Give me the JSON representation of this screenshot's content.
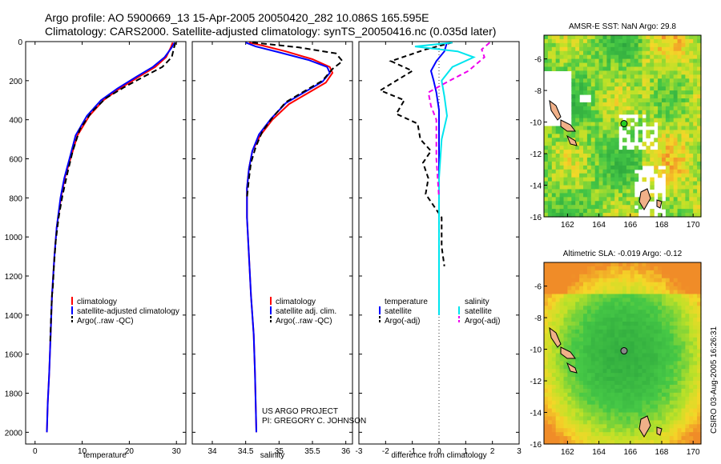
{
  "title_line1": "Argo profile: AO 5900669_13 15-Apr-2005 20050420_282 10.086S 165.595E",
  "title_line2": "Climatology: CARS2000. Satellite-adjusted climatology: synTS_20050416.nc (0.035d later)",
  "colors": {
    "clim": "#ff0000",
    "sat": "#0000ff",
    "argo": "#000000",
    "sal_sat": "#00e5ee",
    "sal_argo": "#ee00ee"
  },
  "credit_line1": "US ARGO PROJECT",
  "credit_line2": "PI: GREGORY C. JOHNSON",
  "timestamp": "CSIRO 03-Aug-2005 16:26:31",
  "chart_data": [
    {
      "type": "line",
      "name": "temperature",
      "xlabel": "temperature",
      "ylabel": "",
      "xlim": [
        -2,
        32
      ],
      "ylim": [
        2060,
        0
      ],
      "xticks": [
        0,
        10,
        20,
        30
      ],
      "yticks": [
        0,
        200,
        400,
        600,
        800,
        1000,
        1200,
        1400,
        1600,
        1800,
        2000
      ],
      "legend": [
        "climatology",
        "satellite-adjusted climatology",
        "Argo(..raw -QC)"
      ],
      "legend_position": "lower-right",
      "series": [
        {
          "name": "climatology",
          "color": "#ff0000",
          "dash": "none",
          "points": [
            [
              29.2,
              5
            ],
            [
              28.8,
              30
            ],
            [
              27.8,
              80
            ],
            [
              25.5,
              130
            ],
            [
              22,
              180
            ],
            [
              18,
              240
            ],
            [
              14.5,
              300
            ],
            [
              11.5,
              380
            ],
            [
              9,
              480
            ],
            [
              7.5,
              600
            ],
            [
              6.3,
              700
            ],
            [
              5.5,
              800
            ],
            [
              4.6,
              950
            ],
            [
              4.1,
              1100
            ],
            [
              3.6,
              1300
            ],
            [
              3.3,
              1500
            ],
            [
              3,
              1700
            ],
            [
              2.7,
              1850
            ],
            [
              2.5,
              2000
            ]
          ]
        },
        {
          "name": "satellite-adjusted climatology",
          "color": "#0000ff",
          "dash": "none",
          "points": [
            [
              29.6,
              5
            ],
            [
              29.0,
              30
            ],
            [
              27.5,
              80
            ],
            [
              25,
              130
            ],
            [
              21.5,
              180
            ],
            [
              17.5,
              240
            ],
            [
              14,
              300
            ],
            [
              11,
              380
            ],
            [
              8.6,
              480
            ],
            [
              7.3,
              600
            ],
            [
              6.2,
              700
            ],
            [
              5.4,
              800
            ],
            [
              4.6,
              950
            ],
            [
              4.1,
              1100
            ],
            [
              3.6,
              1300
            ],
            [
              3.3,
              1500
            ],
            [
              3,
              1700
            ],
            [
              2.7,
              1850
            ],
            [
              2.5,
              2000
            ]
          ]
        },
        {
          "name": "Argo(..raw -QC)",
          "color": "#000000",
          "dash": "7,4",
          "points": [
            [
              29.8,
              5
            ],
            [
              29.5,
              30
            ],
            [
              29,
              80
            ],
            [
              27,
              130
            ],
            [
              23,
              180
            ],
            [
              18.8,
              235
            ],
            [
              15,
              290
            ],
            [
              12,
              360
            ],
            [
              9.5,
              450
            ],
            [
              8,
              560
            ],
            [
              6.8,
              680
            ],
            [
              5.8,
              790
            ],
            [
              5,
              900
            ],
            [
              4.4,
              1020
            ],
            [
              4,
              1150
            ],
            [
              3.8,
              1250
            ],
            [
              3.6,
              1300
            ],
            [
              3.4,
              1400
            ],
            [
              3.2,
              1550
            ]
          ]
        }
      ]
    },
    {
      "type": "line",
      "name": "salinity",
      "xlabel": "salinity",
      "ylabel": "",
      "xlim": [
        33.7,
        36.1
      ],
      "ylim": [
        2060,
        0
      ],
      "xticks": [
        34,
        34.5,
        35,
        35.5,
        36
      ],
      "legend": [
        "climatology",
        "satellite adj. clim.",
        "Argo(..raw -QC)"
      ],
      "legend_position": "lower-right",
      "series": [
        {
          "name": "climatology",
          "color": "#ff0000",
          "dash": "none",
          "points": [
            [
              34.55,
              5
            ],
            [
              34.75,
              20
            ],
            [
              35.1,
              50
            ],
            [
              35.5,
              90
            ],
            [
              35.76,
              130
            ],
            [
              35.8,
              160
            ],
            [
              35.7,
              210
            ],
            [
              35.45,
              260
            ],
            [
              35.15,
              320
            ],
            [
              34.9,
              400
            ],
            [
              34.72,
              480
            ],
            [
              34.6,
              560
            ],
            [
              34.55,
              650
            ],
            [
              34.52,
              750
            ],
            [
              34.52,
              900
            ],
            [
              34.55,
              1100
            ],
            [
              34.58,
              1300
            ],
            [
              34.62,
              1500
            ],
            [
              34.64,
              1700
            ],
            [
              34.66,
              2000
            ]
          ]
        },
        {
          "name": "satellite adj. clim.",
          "color": "#0000ff",
          "dash": "none",
          "points": [
            [
              34.5,
              5
            ],
            [
              34.65,
              25
            ],
            [
              35.0,
              55
            ],
            [
              35.45,
              95
            ],
            [
              35.72,
              130
            ],
            [
              35.76,
              160
            ],
            [
              35.65,
              205
            ],
            [
              35.4,
              255
            ],
            [
              35.1,
              315
            ],
            [
              34.88,
              395
            ],
            [
              34.7,
              475
            ],
            [
              34.6,
              560
            ],
            [
              34.55,
              650
            ],
            [
              34.52,
              750
            ],
            [
              34.52,
              900
            ],
            [
              34.55,
              1100
            ],
            [
              34.58,
              1300
            ],
            [
              34.62,
              1500
            ],
            [
              34.64,
              1700
            ],
            [
              34.66,
              2000
            ]
          ]
        },
        {
          "name": "Argo(..raw -QC)",
          "color": "#000000",
          "dash": "7,4",
          "points": [
            [
              34.6,
              5
            ],
            [
              34.9,
              15
            ],
            [
              35.3,
              30
            ],
            [
              35.85,
              60
            ],
            [
              35.95,
              100
            ],
            [
              35.8,
              140
            ],
            [
              35.65,
              200
            ],
            [
              35.4,
              250
            ],
            [
              35.1,
              310
            ],
            [
              34.9,
              390
            ],
            [
              34.75,
              460
            ],
            [
              34.65,
              540
            ],
            [
              34.58,
              620
            ],
            [
              34.55,
              700
            ],
            [
              34.52,
              800
            ]
          ]
        }
      ]
    },
    {
      "type": "line",
      "name": "difference",
      "xlabel": "difference from climatology",
      "ylabel": "",
      "xlim": [
        -3,
        3
      ],
      "ylim": [
        2060,
        0
      ],
      "xticks": [
        -3,
        -2,
        -1,
        0,
        1,
        2,
        3
      ],
      "legend": [
        "temperature",
        "satellite",
        "Argo(-adj)",
        "salinity",
        "satellite",
        "Argo(-adj)"
      ],
      "legend_position": "lower-center",
      "series": [
        {
          "name": "temperature satellite",
          "color": "#0000ff",
          "dash": "none",
          "points": [
            [
              0.3,
              5
            ],
            [
              0.2,
              50
            ],
            [
              -0.1,
              100
            ],
            [
              -0.3,
              150
            ],
            [
              -0.2,
              200
            ],
            [
              -0.1,
              260
            ],
            [
              0,
              350
            ],
            [
              0,
              500
            ],
            [
              0,
              800
            ],
            [
              0,
              1400
            ]
          ]
        },
        {
          "name": "temperature Argo(-adj)",
          "color": "#000000",
          "dash": "6,4",
          "points": [
            [
              0.5,
              5
            ],
            [
              -0.5,
              40
            ],
            [
              -1.8,
              100
            ],
            [
              -1.0,
              150
            ],
            [
              -2.2,
              250
            ],
            [
              -1.3,
              300
            ],
            [
              -1.6,
              370
            ],
            [
              -0.8,
              420
            ],
            [
              -0.7,
              500
            ],
            [
              -0.3,
              560
            ],
            [
              -0.6,
              620
            ],
            [
              -0.4,
              700
            ],
            [
              -0.5,
              780
            ],
            [
              0.1,
              900
            ],
            [
              0.1,
              1050
            ],
            [
              0.2,
              1150
            ]
          ]
        },
        {
          "name": "salinity satellite",
          "color": "#00e5ee",
          "dash": "none",
          "points": [
            [
              0.5,
              5
            ],
            [
              -0.9,
              25
            ],
            [
              0.7,
              50
            ],
            [
              1.3,
              80
            ],
            [
              0.5,
              130
            ],
            [
              0.1,
              200
            ],
            [
              0.2,
              280
            ],
            [
              0.3,
              380
            ],
            [
              0.1,
              500
            ],
            [
              0,
              700
            ],
            [
              0,
              1000
            ],
            [
              0,
              1400
            ]
          ]
        },
        {
          "name": "salinity Argo(-adj)",
          "color": "#ee00ee",
          "dash": "6,4",
          "points": [
            [
              1.9,
              5
            ],
            [
              1.6,
              40
            ],
            [
              1.7,
              80
            ],
            [
              1.1,
              150
            ],
            [
              0.4,
              200
            ],
            [
              -0.4,
              260
            ],
            [
              -0.3,
              330
            ],
            [
              -0.1,
              400
            ],
            [
              -0.1,
              600
            ],
            [
              0,
              800
            ]
          ]
        }
      ]
    },
    {
      "type": "heatmap",
      "name": "sst_map",
      "title": "AMSR-E SST: NaN Argo: 29.8",
      "xlim": [
        160.5,
        170.5
      ],
      "ylim": [
        -16,
        -4.5
      ],
      "xticks": [
        162,
        164,
        166,
        168,
        170
      ],
      "yticks": [
        -6,
        -8,
        -10,
        -12,
        -14,
        -16
      ],
      "argo_marker": [
        165.6,
        -10.1
      ],
      "marker_color": "#22cc22"
    },
    {
      "type": "heatmap",
      "name": "sla_map",
      "title": "Altimetric SLA: -0.019 Argo: -0.12",
      "xlim": [
        160.5,
        170.5
      ],
      "ylim": [
        -16,
        -4.5
      ],
      "xticks": [
        162,
        164,
        166,
        168,
        170
      ],
      "yticks": [
        -6,
        -8,
        -10,
        -12,
        -14,
        -16
      ],
      "argo_marker": [
        165.6,
        -10.1
      ],
      "marker_color": "#888888"
    }
  ]
}
